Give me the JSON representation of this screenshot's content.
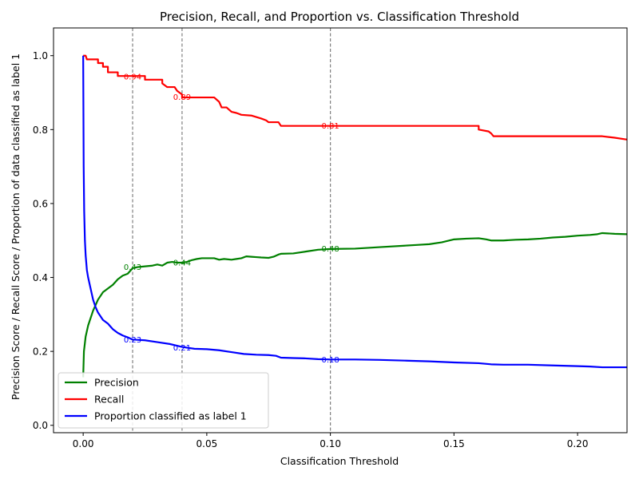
{
  "chart_data": {
    "type": "line",
    "title": "Precision, Recall, and Proportion vs. Classification Threshold",
    "xlabel": "Classification Threshold",
    "ylabel": "Precision Score / Recall Score / Proportion of data classified as label 1",
    "xlim": [
      -0.012,
      0.22
    ],
    "ylim": [
      -0.02,
      1.075
    ],
    "x_ticks": [
      0.0,
      0.05,
      0.1,
      0.15,
      0.2
    ],
    "x_tick_labels": [
      "0.00",
      "0.05",
      "0.10",
      "0.15",
      "0.20"
    ],
    "y_ticks": [
      0.0,
      0.2,
      0.4,
      0.6,
      0.8,
      1.0
    ],
    "y_tick_labels": [
      "0.0",
      "0.2",
      "0.4",
      "0.6",
      "0.8",
      "1.0"
    ],
    "grid": false,
    "legend_position": "bottom-left",
    "vlines": [
      0.02,
      0.04,
      0.1
    ],
    "series": [
      {
        "name": "Precision",
        "color": "#008000",
        "points": [
          [
            0.0,
            0.13
          ],
          [
            0.0003,
            0.2
          ],
          [
            0.001,
            0.24
          ],
          [
            0.002,
            0.27
          ],
          [
            0.004,
            0.31
          ],
          [
            0.006,
            0.34
          ],
          [
            0.008,
            0.36
          ],
          [
            0.01,
            0.37
          ],
          [
            0.012,
            0.38
          ],
          [
            0.014,
            0.395
          ],
          [
            0.016,
            0.405
          ],
          [
            0.018,
            0.41
          ],
          [
            0.02,
            0.425
          ],
          [
            0.022,
            0.428
          ],
          [
            0.025,
            0.43
          ],
          [
            0.028,
            0.432
          ],
          [
            0.03,
            0.435
          ],
          [
            0.032,
            0.432
          ],
          [
            0.034,
            0.44
          ],
          [
            0.036,
            0.442
          ],
          [
            0.038,
            0.44
          ],
          [
            0.04,
            0.44
          ],
          [
            0.042,
            0.442
          ],
          [
            0.044,
            0.447
          ],
          [
            0.046,
            0.45
          ],
          [
            0.048,
            0.452
          ],
          [
            0.05,
            0.452
          ],
          [
            0.053,
            0.452
          ],
          [
            0.055,
            0.448
          ],
          [
            0.057,
            0.45
          ],
          [
            0.06,
            0.448
          ],
          [
            0.062,
            0.45
          ],
          [
            0.064,
            0.452
          ],
          [
            0.066,
            0.457
          ],
          [
            0.068,
            0.456
          ],
          [
            0.07,
            0.455
          ],
          [
            0.072,
            0.454
          ],
          [
            0.075,
            0.453
          ],
          [
            0.077,
            0.456
          ],
          [
            0.079,
            0.462
          ],
          [
            0.08,
            0.464
          ],
          [
            0.085,
            0.465
          ],
          [
            0.09,
            0.47
          ],
          [
            0.095,
            0.475
          ],
          [
            0.1,
            0.477
          ],
          [
            0.11,
            0.478
          ],
          [
            0.12,
            0.482
          ],
          [
            0.13,
            0.486
          ],
          [
            0.135,
            0.488
          ],
          [
            0.14,
            0.49
          ],
          [
            0.145,
            0.495
          ],
          [
            0.15,
            0.503
          ],
          [
            0.155,
            0.505
          ],
          [
            0.16,
            0.506
          ],
          [
            0.163,
            0.503
          ],
          [
            0.165,
            0.5
          ],
          [
            0.17,
            0.5
          ],
          [
            0.175,
            0.502
          ],
          [
            0.18,
            0.503
          ],
          [
            0.185,
            0.505
          ],
          [
            0.19,
            0.508
          ],
          [
            0.195,
            0.51
          ],
          [
            0.2,
            0.513
          ],
          [
            0.205,
            0.515
          ],
          [
            0.208,
            0.517
          ],
          [
            0.21,
            0.52
          ],
          [
            0.215,
            0.518
          ],
          [
            0.22,
            0.517
          ]
        ]
      },
      {
        "name": "Recall",
        "color": "#ff0000",
        "points": [
          [
            0.0,
            1.0
          ],
          [
            0.001,
            1.0
          ],
          [
            0.0015,
            0.99
          ],
          [
            0.006,
            0.99
          ],
          [
            0.006,
            0.98
          ],
          [
            0.008,
            0.98
          ],
          [
            0.008,
            0.97
          ],
          [
            0.01,
            0.97
          ],
          [
            0.01,
            0.955
          ],
          [
            0.014,
            0.955
          ],
          [
            0.014,
            0.945
          ],
          [
            0.025,
            0.945
          ],
          [
            0.025,
            0.935
          ],
          [
            0.032,
            0.935
          ],
          [
            0.032,
            0.925
          ],
          [
            0.034,
            0.915
          ],
          [
            0.037,
            0.915
          ],
          [
            0.038,
            0.905
          ],
          [
            0.04,
            0.895
          ],
          [
            0.04,
            0.887
          ],
          [
            0.053,
            0.887
          ],
          [
            0.055,
            0.875
          ],
          [
            0.056,
            0.86
          ],
          [
            0.058,
            0.86
          ],
          [
            0.06,
            0.848
          ],
          [
            0.062,
            0.845
          ],
          [
            0.064,
            0.84
          ],
          [
            0.068,
            0.838
          ],
          [
            0.072,
            0.83
          ],
          [
            0.074,
            0.825
          ],
          [
            0.075,
            0.82
          ],
          [
            0.079,
            0.82
          ],
          [
            0.08,
            0.81
          ],
          [
            0.1,
            0.81
          ],
          [
            0.14,
            0.81
          ],
          [
            0.16,
            0.81
          ],
          [
            0.16,
            0.8
          ],
          [
            0.164,
            0.795
          ],
          [
            0.165,
            0.79
          ],
          [
            0.166,
            0.782
          ],
          [
            0.18,
            0.782
          ],
          [
            0.2,
            0.782
          ],
          [
            0.21,
            0.782
          ],
          [
            0.215,
            0.778
          ],
          [
            0.22,
            0.773
          ]
        ]
      },
      {
        "name": "Proportion classified as label 1",
        "color": "#0000ff",
        "points": [
          [
            0.0,
            1.0
          ],
          [
            0.0001,
            0.85
          ],
          [
            0.0002,
            0.7
          ],
          [
            0.0004,
            0.58
          ],
          [
            0.0007,
            0.5
          ],
          [
            0.001,
            0.46
          ],
          [
            0.0015,
            0.42
          ],
          [
            0.002,
            0.4
          ],
          [
            0.003,
            0.37
          ],
          [
            0.004,
            0.34
          ],
          [
            0.005,
            0.32
          ],
          [
            0.006,
            0.305
          ],
          [
            0.007,
            0.295
          ],
          [
            0.008,
            0.285
          ],
          [
            0.01,
            0.275
          ],
          [
            0.012,
            0.26
          ],
          [
            0.014,
            0.25
          ],
          [
            0.016,
            0.243
          ],
          [
            0.018,
            0.238
          ],
          [
            0.02,
            0.232
          ],
          [
            0.025,
            0.23
          ],
          [
            0.03,
            0.225
          ],
          [
            0.035,
            0.22
          ],
          [
            0.04,
            0.212
          ],
          [
            0.045,
            0.207
          ],
          [
            0.05,
            0.206
          ],
          [
            0.055,
            0.203
          ],
          [
            0.06,
            0.198
          ],
          [
            0.065,
            0.193
          ],
          [
            0.07,
            0.191
          ],
          [
            0.075,
            0.19
          ],
          [
            0.078,
            0.188
          ],
          [
            0.08,
            0.183
          ],
          [
            0.085,
            0.182
          ],
          [
            0.09,
            0.181
          ],
          [
            0.095,
            0.179
          ],
          [
            0.1,
            0.178
          ],
          [
            0.11,
            0.178
          ],
          [
            0.12,
            0.177
          ],
          [
            0.13,
            0.175
          ],
          [
            0.14,
            0.173
          ],
          [
            0.15,
            0.17
          ],
          [
            0.16,
            0.168
          ],
          [
            0.165,
            0.165
          ],
          [
            0.17,
            0.164
          ],
          [
            0.18,
            0.164
          ],
          [
            0.19,
            0.162
          ],
          [
            0.2,
            0.16
          ],
          [
            0.205,
            0.159
          ],
          [
            0.21,
            0.157
          ],
          [
            0.22,
            0.157
          ]
        ]
      }
    ],
    "annotations": [
      {
        "x": 0.02,
        "y": 0.943,
        "text": "0.94",
        "color": "#ff0000"
      },
      {
        "x": 0.04,
        "y": 0.888,
        "text": "0.89",
        "color": "#ff0000"
      },
      {
        "x": 0.1,
        "y": 0.81,
        "text": "0.81",
        "color": "#ff0000"
      },
      {
        "x": 0.02,
        "y": 0.428,
        "text": "0.43",
        "color": "#008000"
      },
      {
        "x": 0.04,
        "y": 0.44,
        "text": "0.44",
        "color": "#008000"
      },
      {
        "x": 0.1,
        "y": 0.478,
        "text": "0.48",
        "color": "#008000"
      },
      {
        "x": 0.02,
        "y": 0.232,
        "text": "0.23",
        "color": "#0000ff"
      },
      {
        "x": 0.04,
        "y": 0.21,
        "text": "0.21",
        "color": "#0000ff"
      },
      {
        "x": 0.1,
        "y": 0.178,
        "text": "0.18",
        "color": "#0000ff"
      }
    ]
  }
}
